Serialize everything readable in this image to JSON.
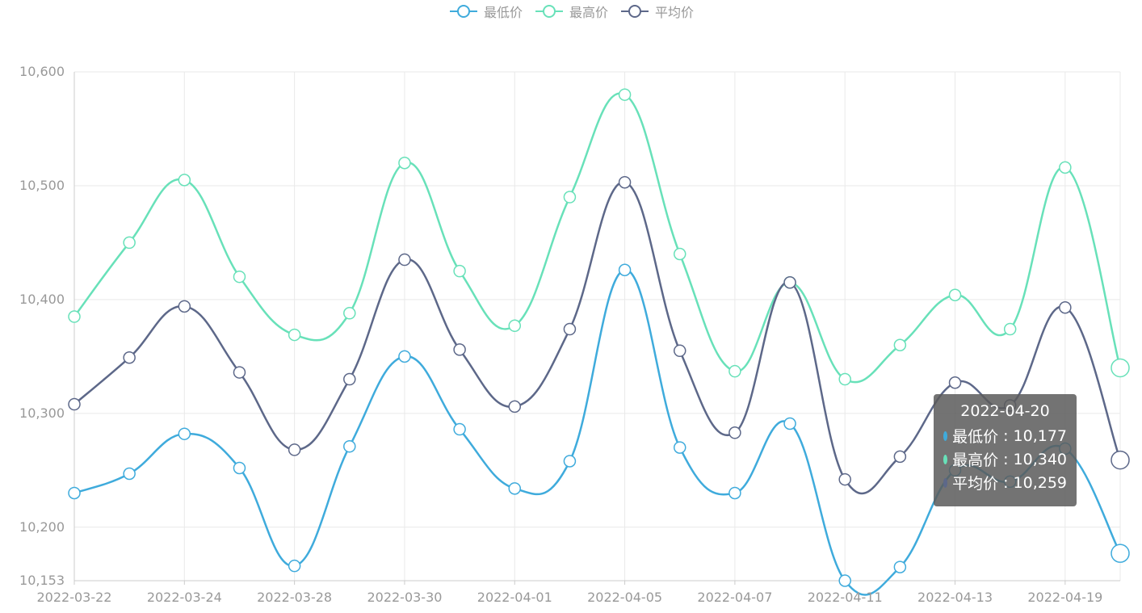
{
  "legend": {
    "items": [
      {
        "label": "最低价",
        "color": "#3fabdc"
      },
      {
        "label": "最高价",
        "color": "#68e1b9"
      },
      {
        "label": "平均价",
        "color": "#5d6889"
      }
    ]
  },
  "tooltip": {
    "date": "2022-04-20",
    "rows": [
      {
        "name": "最低价",
        "value": "10,177",
        "color": "#3fabdc"
      },
      {
        "name": "最高价",
        "value": "10,340",
        "color": "#68e1b9"
      },
      {
        "name": "平均价",
        "value": "10,259",
        "color": "#5d6889"
      }
    ]
  },
  "chart_data": {
    "type": "line",
    "smooth": true,
    "x_tick_labels": [
      "2022-03-22",
      "2022-03-24",
      "2022-03-28",
      "2022-03-30",
      "2022-04-01",
      "2022-04-05",
      "2022-04-07",
      "2022-04-11",
      "2022-04-13",
      "2022-04-19"
    ],
    "y_ticks": [
      10153,
      10200,
      10300,
      10400,
      10500,
      10600
    ],
    "y_tick_labels": [
      "10,153",
      "10,200",
      "10,300",
      "10,400",
      "10,500",
      "10,600"
    ],
    "ylim": [
      10153,
      10600
    ],
    "grid": true,
    "legend_position": "top-center",
    "series": [
      {
        "name": "最低价",
        "color": "#3fabdc",
        "values": [
          10230,
          10247,
          10282,
          10252,
          10166,
          10271,
          10350,
          10286,
          10234,
          10258,
          10426,
          10270,
          10230,
          10291,
          10153,
          10165,
          10250,
          10240,
          10269,
          10177
        ]
      },
      {
        "name": "最高价",
        "color": "#68e1b9",
        "values": [
          10385,
          10450,
          10505,
          10420,
          10369,
          10388,
          10520,
          10425,
          10377,
          10490,
          10580,
          10440,
          10337,
          10415,
          10330,
          10360,
          10404,
          10374,
          10516,
          10340
        ]
      },
      {
        "name": "平均价",
        "color": "#5d6889",
        "values": [
          10308,
          10349,
          10394,
          10336,
          10268,
          10330,
          10435,
          10356,
          10306,
          10374,
          10503,
          10355,
          10283,
          10415,
          10242,
          10262,
          10327,
          10307,
          10393,
          10259
        ]
      }
    ]
  }
}
